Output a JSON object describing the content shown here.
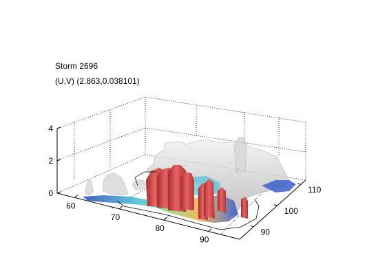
{
  "chart_data": {
    "type": "3d-surface",
    "title": [
      "Storm 2696",
      "(U,V) (2.863,0.038101)"
    ],
    "x": {
      "ticks": [
        60,
        70,
        80,
        90
      ]
    },
    "y": {
      "ticks": [
        90,
        100,
        110
      ]
    },
    "z": {
      "ticks": [
        0,
        2,
        4
      ]
    },
    "grid": true,
    "colors": {
      "isosurface_gray": "#c4c4c4",
      "storm_core": "#d9534f",
      "precip_low": "#3a5fcd",
      "precip_mid": "#4fd0b0",
      "precip_high": "#f0a040"
    }
  }
}
